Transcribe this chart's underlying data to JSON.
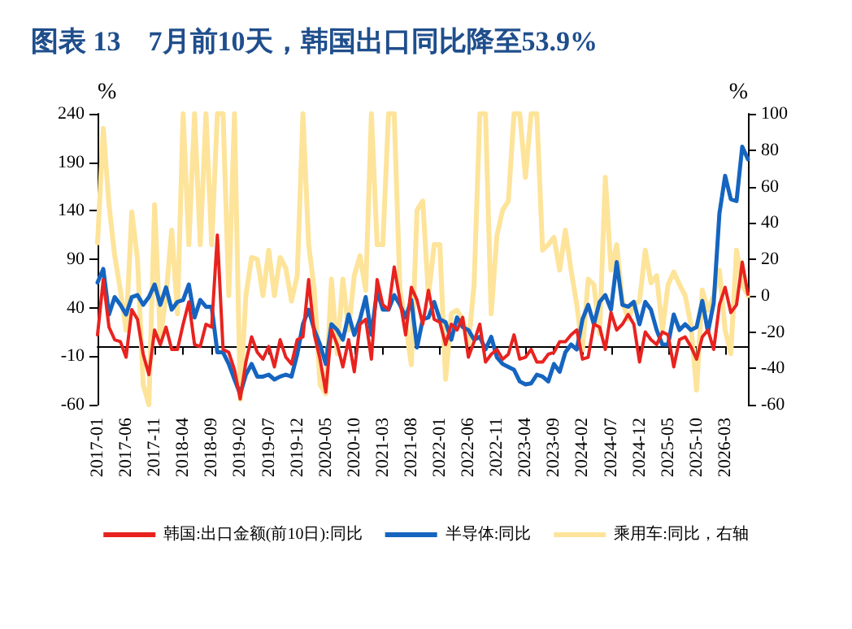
{
  "chart_data": {
    "type": "line",
    "title": "图表 13　7月前10天，韩国出口同比降至53.9%",
    "ylabel": "%",
    "y2label": "%",
    "categories": [
      "2017-01",
      null,
      null,
      null,
      null,
      "2017-06",
      null,
      null,
      null,
      null,
      "2017-11",
      null,
      null,
      null,
      null,
      "2018-04",
      null,
      null,
      null,
      null,
      "2018-09",
      null,
      null,
      null,
      null,
      "2019-02",
      null,
      null,
      null,
      null,
      "2019-07",
      null,
      null,
      null,
      null,
      "2019-12",
      null,
      null,
      null,
      null,
      "2020-05",
      null,
      null,
      null,
      null,
      "2020-10",
      null,
      null,
      null,
      null,
      "2021-03",
      null,
      null,
      null,
      null,
      "2021-08",
      null,
      null,
      null,
      null,
      "2022-01",
      null,
      null,
      null,
      null,
      "2022-06",
      null,
      null,
      null,
      null,
      "2022-11",
      null,
      null,
      null,
      null,
      "2023-04",
      null,
      null,
      null,
      null,
      "2023-09",
      null,
      null,
      null,
      null,
      "2024-02",
      null,
      null,
      null,
      null,
      "2024-07",
      null,
      null,
      null,
      null,
      "2024-12",
      null,
      null,
      null,
      null,
      "2025-05",
      null,
      null,
      null,
      null,
      "2025-10",
      null,
      null,
      null,
      null,
      "2026-03",
      null,
      null,
      null,
      null
    ],
    "series": [
      {
        "name": "韩国:出口金额(前10日):同比",
        "color": "#e8231f",
        "values": [
          12,
          69,
          20,
          7,
          5,
          -11,
          38,
          28,
          -8,
          -29,
          17,
          2,
          20,
          -3,
          -3,
          23,
          46,
          2,
          0,
          23,
          20,
          115,
          -3,
          -6,
          -24,
          -54,
          -16,
          10,
          -6,
          -13,
          0,
          -21,
          7,
          -11,
          -18,
          7,
          10,
          69,
          12,
          -13,
          -47,
          17,
          2,
          -21,
          7,
          -26,
          23,
          28,
          -13,
          69,
          43,
          38,
          82,
          48,
          12,
          61,
          48,
          23,
          58,
          28,
          25,
          2,
          23,
          17,
          30,
          -11,
          5,
          23,
          -16,
          -8,
          -3,
          -13,
          -8,
          12,
          -13,
          -11,
          -3,
          -16,
          -16,
          -8,
          -6,
          5,
          5,
          12,
          17,
          -13,
          -11,
          23,
          20,
          -3,
          35,
          17,
          23,
          33,
          23,
          -16,
          15,
          7,
          2,
          15,
          12,
          -21,
          7,
          10,
          0,
          -13,
          10,
          17,
          -3,
          43,
          61,
          35,
          43,
          87,
          53.9
        ]
      },
      {
        "name": "半导体:同比",
        "color": "#1565c0",
        "values": [
          66,
          80,
          33,
          51,
          43,
          33,
          51,
          53,
          43,
          51,
          64,
          43,
          61,
          38,
          46,
          48,
          64,
          30,
          48,
          41,
          41,
          -6,
          -6,
          -18,
          -34,
          -49,
          -29,
          -18,
          -31,
          -31,
          -29,
          -34,
          -31,
          -29,
          -31,
          -8,
          23,
          38,
          17,
          2,
          -18,
          23,
          17,
          7,
          33,
          12,
          28,
          51,
          12,
          58,
          38,
          38,
          53,
          43,
          30,
          48,
          -1,
          28,
          30,
          46,
          28,
          25,
          7,
          30,
          20,
          17,
          7,
          10,
          -3,
          10,
          -11,
          -18,
          -21,
          -24,
          -36,
          -39,
          -38,
          -29,
          -31,
          -36,
          -18,
          -26,
          -6,
          2,
          -3,
          28,
          43,
          23,
          46,
          53,
          38,
          87,
          43,
          41,
          46,
          23,
          46,
          38,
          17,
          2,
          2,
          33,
          17,
          23,
          17,
          20,
          47,
          15,
          45,
          137,
          176,
          152,
          150,
          206,
          193
        ]
      },
      {
        "name": "乘用车:同比，右轴",
        "color": "#fde49a",
        "axis": "y2",
        "values": [
          29,
          92,
          50,
          22,
          3,
          -19,
          46,
          20,
          -49,
          -60,
          50,
          -24,
          0,
          36,
          -10,
          100,
          28,
          100,
          28,
          100,
          28,
          100,
          100,
          0,
          100,
          -57,
          0,
          21,
          20,
          0,
          25,
          0,
          21,
          15,
          -3,
          11,
          100,
          28,
          3,
          -49,
          -54,
          9,
          -32,
          9,
          -19,
          11,
          22,
          3,
          100,
          28,
          28,
          100,
          100,
          3,
          -16,
          -38,
          47,
          52,
          0,
          28,
          28,
          -46,
          -10,
          -8,
          -13,
          -27,
          6,
          100,
          100,
          -10,
          33,
          47,
          52,
          100,
          100,
          65,
          100,
          100,
          25,
          28,
          32,
          14,
          36,
          14,
          -5,
          -30,
          9,
          6,
          -21,
          65,
          14,
          28,
          -3,
          -13,
          -5,
          -3,
          25,
          7,
          11,
          -19,
          6,
          13,
          6,
          0,
          -16,
          -52,
          3,
          -8,
          0,
          14,
          -19,
          -32,
          25,
          6,
          0
        ]
      }
    ],
    "ylim": [
      -60,
      240
    ],
    "yticks": [
      -60,
      -10,
      40,
      90,
      140,
      190,
      240
    ],
    "y2lim": [
      -60,
      100
    ],
    "y2ticks": [
      -60,
      -40,
      -20,
      0,
      20,
      40,
      60,
      80,
      100
    ],
    "legend": "bottom",
    "grid": false,
    "marker": "none",
    "line_style": "solid"
  }
}
